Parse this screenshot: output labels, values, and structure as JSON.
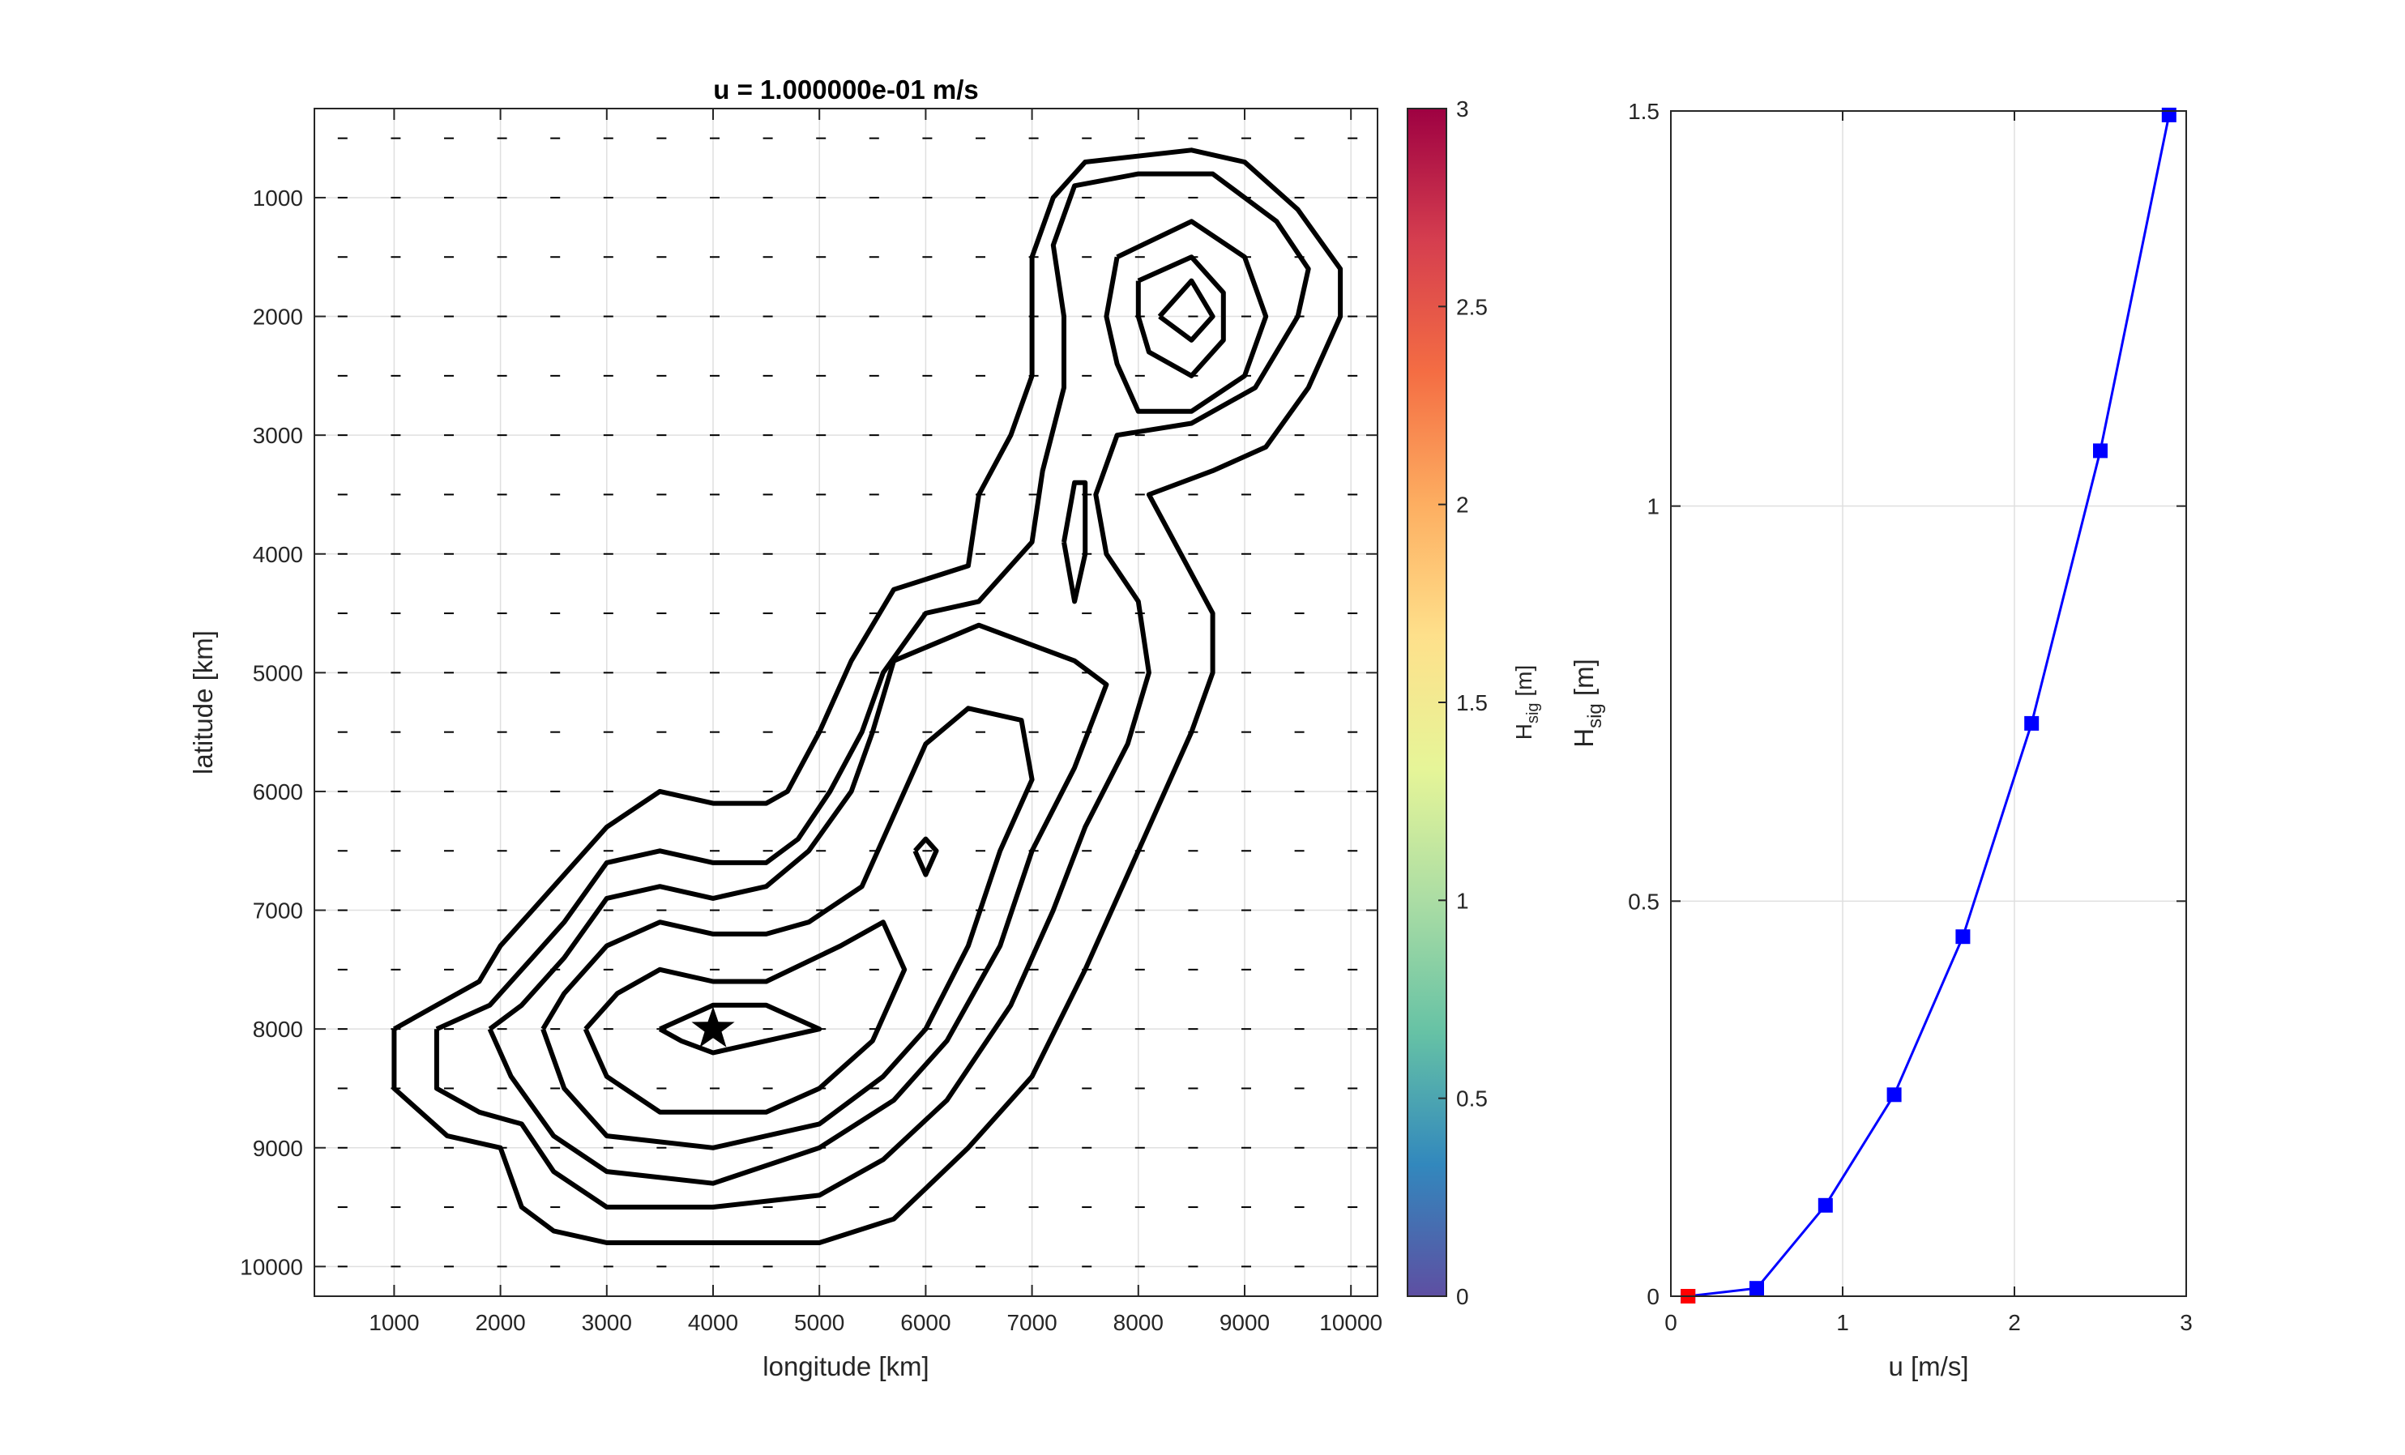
{
  "chart_data": [
    {
      "type": "contour",
      "title": "u = 1.000000e-01 m/s",
      "xlabel": "longitude [km]",
      "ylabel": "latitude [km]",
      "xlim": [
        250,
        10250
      ],
      "ylim": [
        10250,
        250
      ],
      "xticks": [
        1000,
        2000,
        3000,
        4000,
        5000,
        6000,
        7000,
        8000,
        9000,
        10000
      ],
      "yticks": [
        1000,
        2000,
        3000,
        4000,
        5000,
        6000,
        7000,
        8000,
        9000,
        10000
      ],
      "grid": true,
      "line_color": "#000000",
      "marker": {
        "type": "star",
        "x": 4000,
        "y": 8000
      },
      "contours": [
        {
          "level": 1,
          "points": [
            [
              1000,
              8000
            ],
            [
              1000,
              8500
            ],
            [
              1500,
              8900
            ],
            [
              2000,
              9000
            ],
            [
              2200,
              9500
            ],
            [
              2500,
              9700
            ],
            [
              3000,
              9800
            ],
            [
              4000,
              9800
            ],
            [
              5000,
              9800
            ],
            [
              5700,
              9600
            ],
            [
              6400,
              9000
            ],
            [
              7000,
              8400
            ],
            [
              7500,
              7500
            ],
            [
              8000,
              6500
            ],
            [
              8500,
              5500
            ],
            [
              8700,
              5000
            ],
            [
              8700,
              4500
            ],
            [
              8400,
              4000
            ],
            [
              8100,
              3500
            ],
            [
              8700,
              3300
            ],
            [
              9200,
              3100
            ],
            [
              9600,
              2600
            ],
            [
              9900,
              2000
            ],
            [
              9900,
              1600
            ],
            [
              9500,
              1100
            ],
            [
              9000,
              700
            ],
            [
              8500,
              600
            ],
            [
              7500,
              700
            ],
            [
              7200,
              1000
            ],
            [
              7000,
              1500
            ],
            [
              7000,
              2500
            ],
            [
              6800,
              3000
            ],
            [
              6500,
              3500
            ],
            [
              6400,
              4100
            ],
            [
              5700,
              4300
            ],
            [
              5300,
              4900
            ],
            [
              5000,
              5500
            ],
            [
              4700,
              6000
            ],
            [
              4500,
              6100
            ],
            [
              4000,
              6100
            ],
            [
              3500,
              6000
            ],
            [
              3000,
              6300
            ],
            [
              2600,
              6700
            ],
            [
              2300,
              7000
            ],
            [
              2000,
              7300
            ],
            [
              1800,
              7600
            ],
            [
              1400,
              7800
            ],
            [
              1000,
              8000
            ]
          ]
        },
        {
          "level": 2,
          "points": [
            [
              1400,
              8000
            ],
            [
              1400,
              8500
            ],
            [
              1800,
              8700
            ],
            [
              2200,
              8800
            ],
            [
              2500,
              9200
            ],
            [
              3000,
              9500
            ],
            [
              4000,
              9500
            ],
            [
              5000,
              9400
            ],
            [
              5600,
              9100
            ],
            [
              6200,
              8600
            ],
            [
              6800,
              7800
            ],
            [
              7200,
              7000
            ],
            [
              7500,
              6300
            ],
            [
              7900,
              5600
            ],
            [
              8100,
              5000
            ],
            [
              8000,
              4400
            ],
            [
              7700,
              4000
            ],
            [
              7600,
              3500
            ],
            [
              7800,
              3000
            ],
            [
              8500,
              2900
            ],
            [
              9100,
              2600
            ],
            [
              9500,
              2000
            ],
            [
              9600,
              1600
            ],
            [
              9300,
              1200
            ],
            [
              8700,
              800
            ],
            [
              8000,
              800
            ],
            [
              7400,
              900
            ],
            [
              7200,
              1400
            ],
            [
              7300,
              2000
            ],
            [
              7300,
              2600
            ],
            [
              7100,
              3300
            ],
            [
              7000,
              3900
            ],
            [
              6500,
              4400
            ],
            [
              6000,
              4500
            ],
            [
              5600,
              5000
            ],
            [
              5400,
              5500
            ],
            [
              5100,
              6000
            ],
            [
              4800,
              6400
            ],
            [
              4500,
              6600
            ],
            [
              4000,
              6600
            ],
            [
              3500,
              6500
            ],
            [
              3000,
              6600
            ],
            [
              2600,
              7100
            ],
            [
              2300,
              7400
            ],
            [
              1900,
              7800
            ],
            [
              1400,
              8000
            ]
          ]
        },
        {
          "level": 3,
          "points": [
            [
              1900,
              8000
            ],
            [
              2100,
              8400
            ],
            [
              2500,
              8900
            ],
            [
              3000,
              9200
            ],
            [
              4000,
              9300
            ],
            [
              5000,
              9000
            ],
            [
              5700,
              8600
            ],
            [
              6200,
              8100
            ],
            [
              6700,
              7300
            ],
            [
              7000,
              6500
            ],
            [
              7400,
              5800
            ],
            [
              7700,
              5100
            ],
            [
              7400,
              4900
            ],
            [
              6500,
              4600
            ],
            [
              5700,
              4900
            ],
            [
              5500,
              5500
            ],
            [
              5300,
              6000
            ],
            [
              4900,
              6500
            ],
            [
              4500,
              6800
            ],
            [
              4000,
              6900
            ],
            [
              3500,
              6800
            ],
            [
              3000,
              6900
            ],
            [
              2600,
              7400
            ],
            [
              2200,
              7800
            ],
            [
              1900,
              8000
            ]
          ]
        },
        {
          "level": 4,
          "points": [
            [
              2400,
              8000
            ],
            [
              2600,
              8500
            ],
            [
              3000,
              8900
            ],
            [
              4000,
              9000
            ],
            [
              5000,
              8800
            ],
            [
              5600,
              8400
            ],
            [
              6000,
              8000
            ],
            [
              6400,
              7300
            ],
            [
              6700,
              6500
            ],
            [
              7000,
              5900
            ],
            [
              6900,
              5400
            ],
            [
              6400,
              5300
            ],
            [
              6000,
              5600
            ],
            [
              5700,
              6200
            ],
            [
              5400,
              6800
            ],
            [
              4900,
              7100
            ],
            [
              4500,
              7200
            ],
            [
              4000,
              7200
            ],
            [
              3500,
              7100
            ],
            [
              3000,
              7300
            ],
            [
              2600,
              7700
            ],
            [
              2400,
              8000
            ]
          ]
        },
        {
          "level": 5,
          "points": [
            [
              2800,
              8000
            ],
            [
              3000,
              8400
            ],
            [
              3500,
              8700
            ],
            [
              4500,
              8700
            ],
            [
              5000,
              8500
            ],
            [
              5500,
              8100
            ],
            [
              5800,
              7500
            ],
            [
              5600,
              7100
            ],
            [
              5200,
              7300
            ],
            [
              4500,
              7600
            ],
            [
              4000,
              7600
            ],
            [
              3500,
              7500
            ],
            [
              3100,
              7700
            ],
            [
              2800,
              8000
            ]
          ]
        },
        {
          "level": 6,
          "points": [
            [
              3500,
              8000
            ],
            [
              3700,
              8100
            ],
            [
              4000,
              8200
            ],
            [
              4500,
              8100
            ],
            [
              5000,
              8000
            ],
            [
              4500,
              7800
            ],
            [
              4000,
              7800
            ],
            [
              3500,
              8000
            ]
          ]
        },
        {
          "level": 7,
          "points": [
            [
              7300,
              3900
            ],
            [
              7400,
              3400
            ],
            [
              7500,
              3400
            ],
            [
              7500,
              4000
            ],
            [
              7400,
              4400
            ],
            [
              7300,
              3900
            ]
          ]
        },
        {
          "level": 8,
          "points": [
            [
              5900,
              6500
            ],
            [
              6000,
              6400
            ],
            [
              6100,
              6500
            ],
            [
              6000,
              6700
            ],
            [
              5900,
              6500
            ]
          ]
        },
        {
          "level": 9,
          "points": [
            [
              7800,
              1500
            ],
            [
              8500,
              1200
            ],
            [
              9000,
              1500
            ],
            [
              9200,
              2000
            ],
            [
              9000,
              2500
            ],
            [
              8500,
              2800
            ],
            [
              8000,
              2800
            ],
            [
              7800,
              2400
            ],
            [
              7700,
              2000
            ],
            [
              7800,
              1500
            ]
          ]
        },
        {
          "level": 10,
          "points": [
            [
              8000,
              1700
            ],
            [
              8500,
              1500
            ],
            [
              8800,
              1800
            ],
            [
              8800,
              2200
            ],
            [
              8500,
              2500
            ],
            [
              8100,
              2300
            ],
            [
              8000,
              2000
            ],
            [
              8000,
              1700
            ]
          ]
        },
        {
          "level": 11,
          "points": [
            [
              8200,
              2000
            ],
            [
              8500,
              1700
            ],
            [
              8700,
              2000
            ],
            [
              8500,
              2200
            ],
            [
              8200,
              2000
            ]
          ]
        }
      ]
    },
    {
      "type": "colorbar",
      "label": "H_sig [m]",
      "label_main": "H",
      "label_sub": "sig",
      "label_tail": " [m]",
      "range": [
        0,
        3
      ],
      "ticks": [
        "0",
        "0.5",
        "1",
        "1.5",
        "2",
        "2.5",
        "3"
      ],
      "colors": [
        "#5e4fa2",
        "#3288bd",
        "#66c2a5",
        "#abdda4",
        "#e6f598",
        "#fee08b",
        "#fdae61",
        "#f46d43",
        "#d53e4f",
        "#9e0142"
      ]
    },
    {
      "type": "line",
      "xlabel": "u [m/s]",
      "ylabel": "H_sig [m]",
      "ylabel_main": "H",
      "ylabel_sub": "sig",
      "ylabel_tail": " [m]",
      "xlim": [
        0,
        3
      ],
      "ylim": [
        0,
        1.5
      ],
      "xticks": [
        "0",
        "1",
        "2",
        "3"
      ],
      "yticks": [
        "0",
        "0.5",
        "1",
        "1.5"
      ],
      "grid": true,
      "series": [
        {
          "color": "#0000ff",
          "marker": "square",
          "x": [
            0.1,
            0.5,
            0.9,
            1.3,
            1.7,
            2.1,
            2.5,
            2.9
          ],
          "values": [
            0.0,
            0.01,
            0.115,
            0.255,
            0.455,
            0.725,
            1.07,
            1.495
          ]
        }
      ],
      "highlight": {
        "x": 0.1,
        "y": 0.0,
        "color": "#ff0000"
      }
    }
  ]
}
